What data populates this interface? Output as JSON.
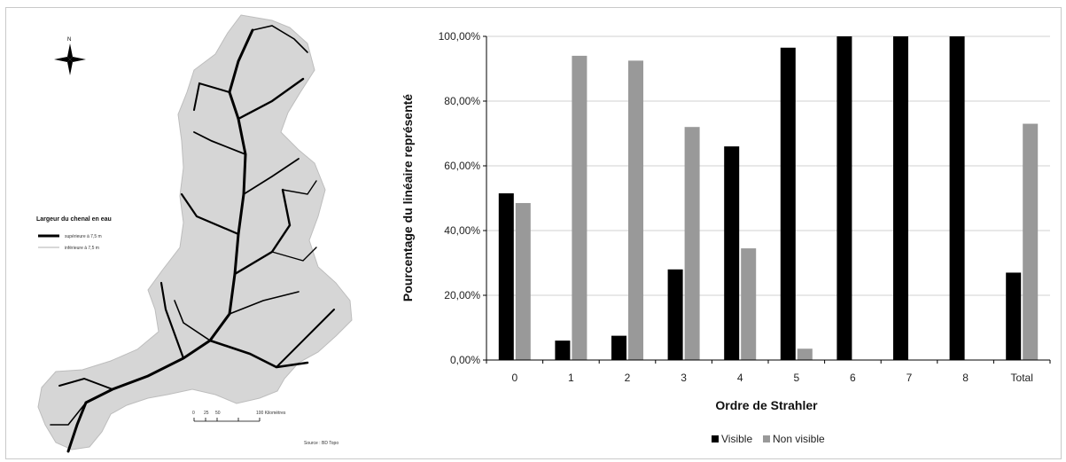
{
  "map": {
    "north_label": "N",
    "legend_title": "Largeur du chenal en eau",
    "legend_items": [
      {
        "label": "supérieure à 7,5 m"
      },
      {
        "label": "inférieure à 7,5 m"
      }
    ],
    "scale_ticks": [
      "0",
      "25",
      "50",
      "100 Kilomètres"
    ],
    "source": "Source : BD Topo"
  },
  "chart_data": {
    "type": "bar",
    "xlabel": "Ordre de Strahler",
    "ylabel": "Pourcentage du linéaire représenté",
    "categories": [
      "0",
      "1",
      "2",
      "3",
      "4",
      "5",
      "6",
      "7",
      "8",
      "Total"
    ],
    "ylim": [
      0,
      100
    ],
    "yticks": [
      "0,00%",
      "20,00%",
      "40,00%",
      "60,00%",
      "80,00%",
      "100,00%"
    ],
    "grid": "horizontal",
    "legend_position": "bottom",
    "series": [
      {
        "name": "Visible",
        "color": "#000000",
        "values": [
          51.5,
          6,
          7.5,
          28,
          66,
          96.5,
          100,
          100,
          100,
          27
        ]
      },
      {
        "name": "Non visible",
        "color": "#999999",
        "values": [
          48.5,
          94,
          92.5,
          72,
          34.5,
          3.5,
          0,
          0,
          0,
          73
        ]
      }
    ]
  }
}
